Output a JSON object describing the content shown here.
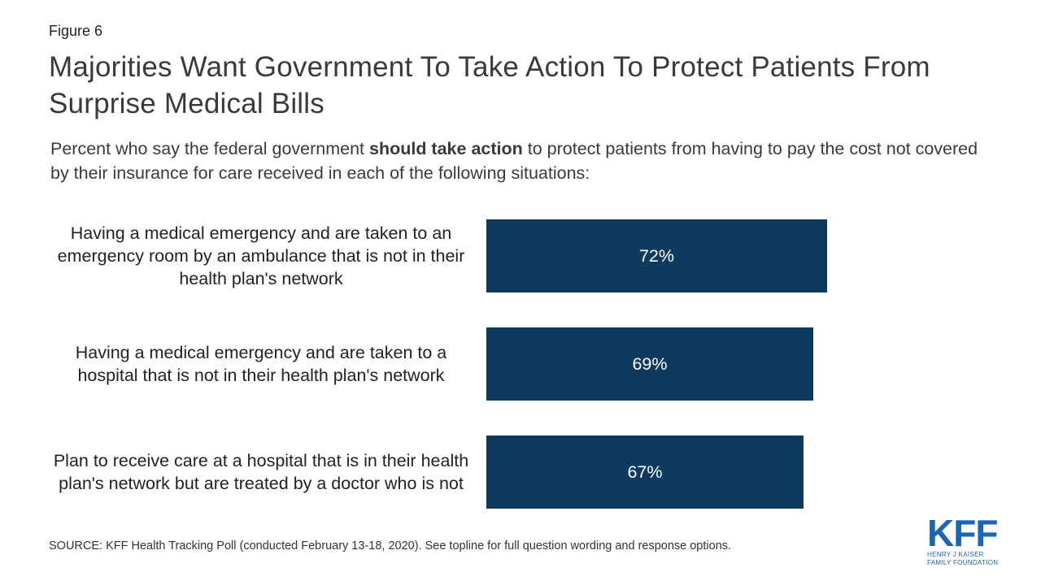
{
  "figure_label": "Figure 6",
  "title": "Majorities Want Government To Take Action To Protect Patients From Surprise Medical Bills",
  "subtitle": {
    "before": "Percent who say the federal government ",
    "bold": "should take action",
    "after": " to protect patients from having to pay the cost not covered by their insurance for care received in each of the following situations:"
  },
  "chart_data": {
    "type": "bar",
    "orientation": "horizontal",
    "categories": [
      "Having a medical emergency and are taken to an emergency room by an ambulance that is not in their health plan's network",
      "Having a medical emergency and are taken to a hospital that is not in their health plan's network",
      "Plan to receive care at a hospital that is in their health plan's network but are treated by a doctor who is not"
    ],
    "values": [
      72,
      69,
      67
    ],
    "value_labels": [
      "72%",
      "69%",
      "67%"
    ],
    "xlim": [
      0,
      100
    ],
    "bar_color": "#0e3a5d",
    "label_color": "#ffffff",
    "grid": false
  },
  "source": "SOURCE: KFF Health Tracking Poll (conducted February 13-18, 2020). See topline for full question wording and response options.",
  "logo": {
    "mark": "KFF",
    "line1": "HENRY J KAISER",
    "line2": "FAMILY FOUNDATION",
    "color": "#1a66b3"
  }
}
